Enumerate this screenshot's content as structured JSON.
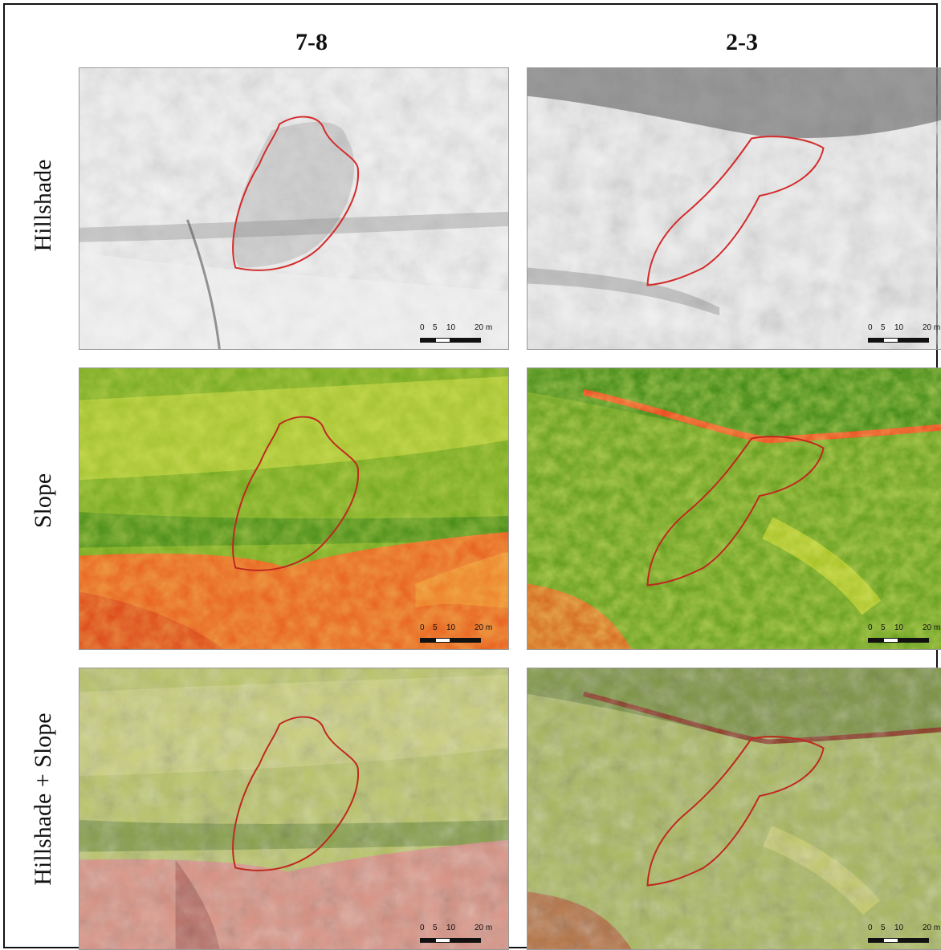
{
  "columns": [
    {
      "id": "a",
      "label": "7-8"
    },
    {
      "id": "b",
      "label": "2-3"
    }
  ],
  "rows": [
    {
      "id": "hillshade",
      "label": "Hillshade"
    },
    {
      "id": "slope",
      "label": "Slope"
    },
    {
      "id": "combo",
      "label": "Hillshade + Slope"
    }
  ],
  "scale_bar": {
    "ticks": [
      "0",
      "5",
      "10",
      "20 m"
    ]
  },
  "colors": {
    "outline": "#d42b2b",
    "slope_low": "#2f7d12",
    "slope_mid": "#e8e62a",
    "slope_high": "#e3341a",
    "hillshade_light": "#e6e6e6",
    "hillshade_dark": "#8a8a8a"
  }
}
